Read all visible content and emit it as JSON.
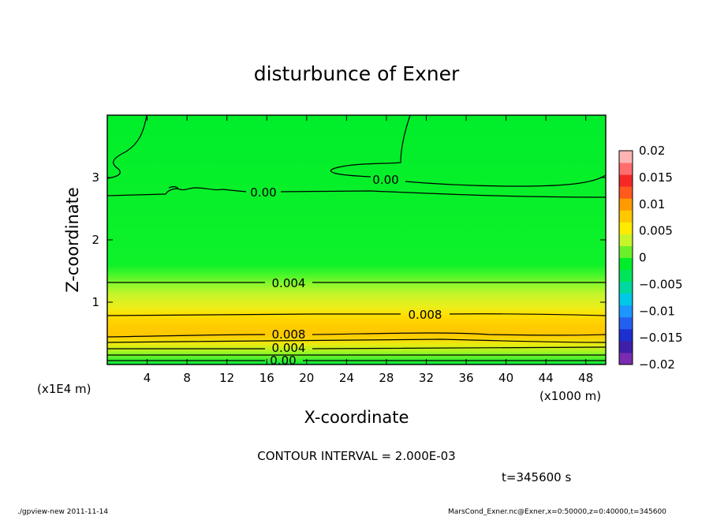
{
  "chart_data": {
    "type": "heatmap",
    "title": "disturbunce of Exner",
    "xlabel": "X-coordinate",
    "ylabel": "Z-coordinate",
    "x_unit": "(x1000 m)",
    "y_unit": "(x1E4 m)",
    "xlim": [
      0,
      50
    ],
    "ylim": [
      0,
      4
    ],
    "x_ticks": [
      4,
      8,
      12,
      16,
      20,
      24,
      28,
      32,
      36,
      40,
      44,
      48
    ],
    "y_ticks": [
      1,
      2,
      3
    ],
    "colorbar": {
      "ticks": [
        "0.02",
        "0.015",
        "0.01",
        "0.005",
        "0",
        "−0.005",
        "−0.01",
        "−0.015",
        "−0.02"
      ],
      "range": [
        -0.02,
        0.02
      ]
    },
    "vertical_profile": [
      {
        "z": 0.0,
        "value": 0.0
      },
      {
        "z": 0.1,
        "value": 0.004
      },
      {
        "z": 0.25,
        "value": 0.007
      },
      {
        "z": 0.5,
        "value": 0.009
      },
      {
        "z": 0.7,
        "value": 0.0095
      },
      {
        "z": 0.9,
        "value": 0.007
      },
      {
        "z": 1.1,
        "value": 0.005
      },
      {
        "z": 1.3,
        "value": 0.004
      },
      {
        "z": 1.5,
        "value": 0.0015
      },
      {
        "z": 2.0,
        "value": 0.0005
      },
      {
        "z": 2.7,
        "value": 0.0
      },
      {
        "z": 3.5,
        "value": -0.0005
      },
      {
        "z": 4.0,
        "value": -0.0008
      }
    ],
    "contour_labels": [
      {
        "text": "0.00",
        "x": 20.2,
        "z": 2.74
      },
      {
        "text": "0.00",
        "x": 34.6,
        "z": 2.95
      },
      {
        "text": "0.004",
        "x": 23.0,
        "z": 1.3
      },
      {
        "text": "0.008",
        "x": 39.5,
        "z": 0.82
      },
      {
        "text": "0.008",
        "x": 23.0,
        "z": 0.46
      },
      {
        "text": "0.004",
        "x": 23.0,
        "z": 0.24
      },
      {
        "text": "0.00",
        "x": 22.0,
        "z": 0.07
      }
    ]
  },
  "contour_interval": "CONTOUR INTERVAL = 2.000E-03",
  "time": "t=345600 s",
  "footer_left": "./gpview-new   2011-11-14",
  "footer_right": "MarsCond_Exner.nc@Exner,x=0:50000,z=0:40000,t=345600"
}
